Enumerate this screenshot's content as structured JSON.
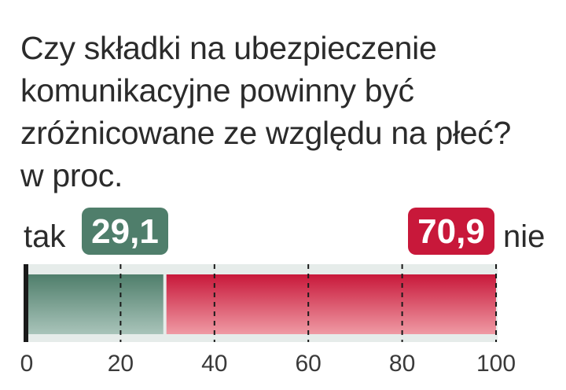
{
  "chart_data": {
    "type": "bar",
    "orientation": "horizontal-stacked",
    "title": [
      "Czy składki na ubezpieczenie",
      "komunikacyjne powinny być",
      "zróżnicowane ze względu na płeć?",
      "w proc."
    ],
    "categories": [
      "tak",
      "nie"
    ],
    "values": [
      29.1,
      70.9
    ],
    "value_labels": [
      "29,1",
      "70,9"
    ],
    "xlim": [
      0,
      100
    ],
    "xticks": [
      0,
      20,
      40,
      60,
      80,
      100
    ],
    "tick_labels": [
      "0",
      "20",
      "40",
      "60",
      "80",
      "100"
    ],
    "grid": "dashed vertical",
    "colors": {
      "tak": "#5a8a78",
      "nie": "#d0203f",
      "tak_badge": "#4f7e6b",
      "nie_badge": "#c8183a",
      "track": "#e6ecea"
    }
  }
}
